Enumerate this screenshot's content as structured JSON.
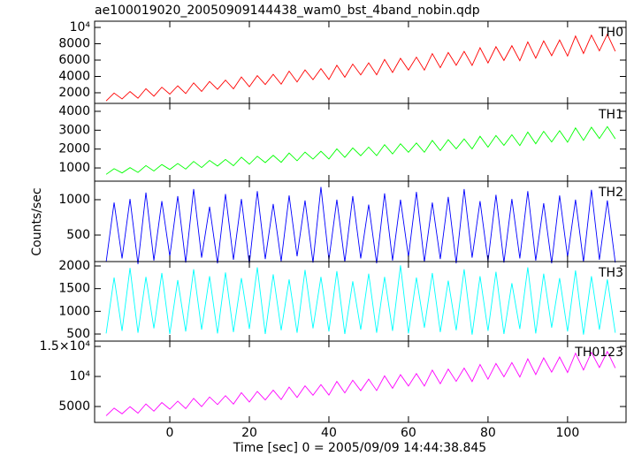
{
  "chart_data": [
    {
      "type": "line",
      "title": "ae100019020_20050909144438_wam0_bst_4band_nobin.qdp",
      "x": [
        -16,
        -14,
        -12,
        -10,
        -8,
        -6,
        -4,
        -2,
        0,
        2,
        4,
        6,
        8,
        10,
        12,
        14,
        16,
        18,
        20,
        22,
        24,
        26,
        28,
        30,
        32,
        34,
        36,
        38,
        40,
        42,
        44,
        46,
        48,
        50,
        52,
        54,
        56,
        58,
        60,
        62,
        64,
        66,
        68,
        70,
        72,
        74,
        76,
        78,
        80,
        82,
        84,
        86,
        88,
        90,
        92,
        94,
        96,
        98,
        100,
        102,
        104,
        106,
        108,
        110,
        112
      ],
      "series": [
        {
          "name": "TH0",
          "color": "#ff0000",
          "values": [
            1000,
            1967,
            1247,
            2150,
            1333,
            2497,
            1581,
            2677,
            1835,
            2851,
            1907,
            3213,
            2163,
            3385,
            2424,
            3553,
            2480,
            3929,
            2744,
            4094,
            3013,
            4254,
            3054,
            4646,
            3325,
            4802,
            3602,
            4955,
            3628,
            5362,
            3906,
            5512,
            4190,
            5656,
            4202,
            6078,
            4488,
            6220,
            4779,
            6358,
            4775,
            6794,
            5069,
            6929,
            5368,
            7059,
            5349,
            7511,
            5650,
            7637,
            5957,
            7760,
            5923,
            8227,
            6231,
            8347,
            6545,
            8461,
            6497,
            8943,
            6813,
            9055,
            7134,
            9163,
            7070
          ]
        }
      ],
      "xlim": [
        -18.9,
        114.7
      ],
      "xticks": [
        0,
        20,
        40,
        60,
        80,
        100
      ],
      "ylim": [
        700,
        10760
      ],
      "yticks": [
        2000,
        4000,
        6000,
        8000,
        {
          "value": 10000,
          "label": "10⁴"
        }
      ]
    },
    {
      "type": "line",
      "x": [
        -16,
        -14,
        -12,
        -10,
        -8,
        -6,
        -4,
        -2,
        0,
        2,
        4,
        6,
        8,
        10,
        12,
        14,
        16,
        18,
        20,
        22,
        24,
        26,
        28,
        30,
        32,
        34,
        36,
        38,
        40,
        42,
        44,
        46,
        48,
        50,
        52,
        54,
        56,
        58,
        60,
        62,
        64,
        66,
        68,
        70,
        72,
        74,
        76,
        78,
        80,
        82,
        84,
        86,
        88,
        90,
        92,
        94,
        96,
        98,
        100,
        102,
        104,
        106,
        108,
        110,
        112
      ],
      "series": [
        {
          "name": "TH1",
          "color": "#00ff00",
          "values": [
            660,
            960,
            737,
            1017,
            763,
            1124,
            840,
            1180,
            919,
            1234,
            941,
            1346,
            1021,
            1399,
            1101,
            1451,
            1119,
            1568,
            1201,
            1619,
            1284,
            1669,
            1297,
            1790,
            1381,
            1839,
            1467,
            1886,
            1475,
            2012,
            1561,
            2059,
            1649,
            2103,
            1653,
            2234,
            1741,
            2278,
            1831,
            2321,
            1830,
            2456,
            1921,
            2498,
            2014,
            2538,
            2008,
            2678,
            2102,
            2717,
            2197,
            2756,
            2186,
            2900,
            2282,
            2938,
            2379,
            2973,
            2364,
            3122,
            2462,
            3157,
            2562,
            3190,
            2542
          ]
        }
      ],
      "xlim": [
        -18.9,
        114.7
      ],
      "xticks": [
        0,
        20,
        40,
        60,
        80,
        100
      ],
      "ylim": [
        300,
        4420
      ],
      "yticks": [
        1000,
        2000,
        3000,
        4000
      ]
    },
    {
      "type": "line",
      "ylabel": "Counts/sec",
      "x": [
        -16,
        -14,
        -12,
        -10,
        -8,
        -6,
        -4,
        -2,
        0,
        2,
        4,
        6,
        8,
        10,
        12,
        14,
        16,
        18,
        20,
        22,
        24,
        26,
        28,
        30,
        32,
        34,
        36,
        38,
        40,
        42,
        44,
        46,
        48,
        50,
        52,
        54,
        56,
        58,
        60,
        62,
        64,
        66,
        68,
        70,
        72,
        74,
        76,
        78,
        80,
        82,
        84,
        86,
        88,
        90,
        92,
        94,
        96,
        98,
        100,
        102,
        104,
        106,
        108,
        110,
        112
      ],
      "series": [
        {
          "name": "TH2",
          "color": "#0000ff",
          "values": [
            120,
            960,
            170,
            1010,
            90,
            1100,
            140,
            980,
            200,
            1050,
            110,
            1150,
            180,
            900,
            100,
            1080,
            150,
            1010,
            90,
            1120,
            160,
            940,
            130,
            1060,
            200,
            990,
            110,
            1180,
            150,
            1000,
            120,
            1050,
            170,
            930,
            100,
            1090,
            140,
            1000,
            190,
            1110,
            120,
            960,
            160,
            1040,
            100,
            1150,
            180,
            980,
            130,
            1070,
            110,
            1010,
            170,
            1120,
            140,
            950,
            100,
            1060,
            190,
            1000,
            120,
            1140,
            150,
            990,
            110
          ]
        }
      ],
      "xlim": [
        -18.9,
        114.7
      ],
      "xticks": [
        0,
        20,
        40,
        60,
        80,
        100
      ],
      "ylim": [
        125,
        1262
      ],
      "yticks": [
        500,
        1000
      ]
    },
    {
      "type": "line",
      "x": [
        -16,
        -14,
        -12,
        -10,
        -8,
        -6,
        -4,
        -2,
        0,
        2,
        4,
        6,
        8,
        10,
        12,
        14,
        16,
        18,
        20,
        22,
        24,
        26,
        28,
        30,
        32,
        34,
        36,
        38,
        40,
        42,
        44,
        46,
        48,
        50,
        52,
        54,
        56,
        58,
        60,
        62,
        64,
        66,
        68,
        70,
        72,
        74,
        76,
        78,
        80,
        82,
        84,
        86,
        88,
        90,
        92,
        94,
        96,
        98,
        100,
        102,
        104,
        106,
        108,
        110,
        112
      ],
      "series": [
        {
          "name": "TH3",
          "color": "#00ffff",
          "values": [
            514,
            1746,
            570,
            1956,
            528,
            1760,
            626,
            1844,
            500,
            1690,
            556,
            1928,
            598,
            1774,
            514,
            1858,
            542,
            1732,
            612,
            1970,
            500,
            1816,
            584,
            1704,
            528,
            1914,
            626,
            1760,
            556,
            1886,
            500,
            1662,
            598,
            1830,
            528,
            1760,
            570,
            2012,
            514,
            1746,
            640,
            1844,
            542,
            1676,
            584,
            1928,
            486,
            1774,
            570,
            1872,
            500,
            1620,
            612,
            1970,
            514,
            1830,
            640,
            1732,
            556,
            1900,
            486,
            1774,
            598,
            1704,
            528
          ]
        }
      ],
      "xlim": [
        -18.9,
        114.7
      ],
      "xticks": [
        0,
        20,
        40,
        60,
        80,
        100
      ],
      "ylim": [
        344,
        2097
      ],
      "yticks": [
        500,
        1000,
        1500,
        2000
      ]
    },
    {
      "type": "line",
      "xlabel": "Time [sec] 0 = 2005/09/09 14:44:38.845",
      "x": [
        -16,
        -14,
        -12,
        -10,
        -8,
        -6,
        -4,
        -2,
        0,
        2,
        4,
        6,
        8,
        10,
        12,
        14,
        16,
        18,
        20,
        22,
        24,
        26,
        28,
        30,
        32,
        34,
        36,
        38,
        40,
        42,
        44,
        46,
        48,
        50,
        52,
        54,
        56,
        58,
        60,
        62,
        64,
        66,
        68,
        70,
        72,
        74,
        76,
        78,
        80,
        82,
        84,
        86,
        88,
        90,
        92,
        94,
        96,
        98,
        100,
        102,
        104,
        106,
        108,
        110,
        112
      ],
      "series": [
        {
          "name": "TH0123",
          "color": "#ff00ff",
          "values": [
            3460,
            4727,
            3784,
            4967,
            3896,
            5421,
            4221,
            5657,
            4554,
            5885,
            4648,
            6359,
            4984,
            6584,
            5325,
            6804,
            5399,
            7297,
            5745,
            7513,
            6097,
            7723,
            6151,
            8236,
            6506,
            8441,
            6869,
            8641,
            6903,
            9174,
            7267,
            9371,
            7639,
            9559,
            7655,
            10112,
            8029,
            10298,
            8410,
            10479,
            8405,
            11050,
            8790,
            11227,
            9182,
            11397,
            9157,
            11989,
            9552,
            12154,
            9954,
            12316,
            9909,
            12927,
            10313,
            13085,
            10724,
            13234,
            10661,
            13865,
            11075,
            14012,
            11496,
            14153,
            11412
          ]
        }
      ],
      "xlim": [
        -18.9,
        114.7
      ],
      "xticks": [
        0,
        20,
        40,
        60,
        80,
        100
      ],
      "ylim": [
        2353,
        15882
      ],
      "yticks": [
        5000,
        {
          "value": 10000,
          "label": "10⁴"
        },
        {
          "value": 15000,
          "label": "1.5×10⁴"
        }
      ]
    }
  ]
}
